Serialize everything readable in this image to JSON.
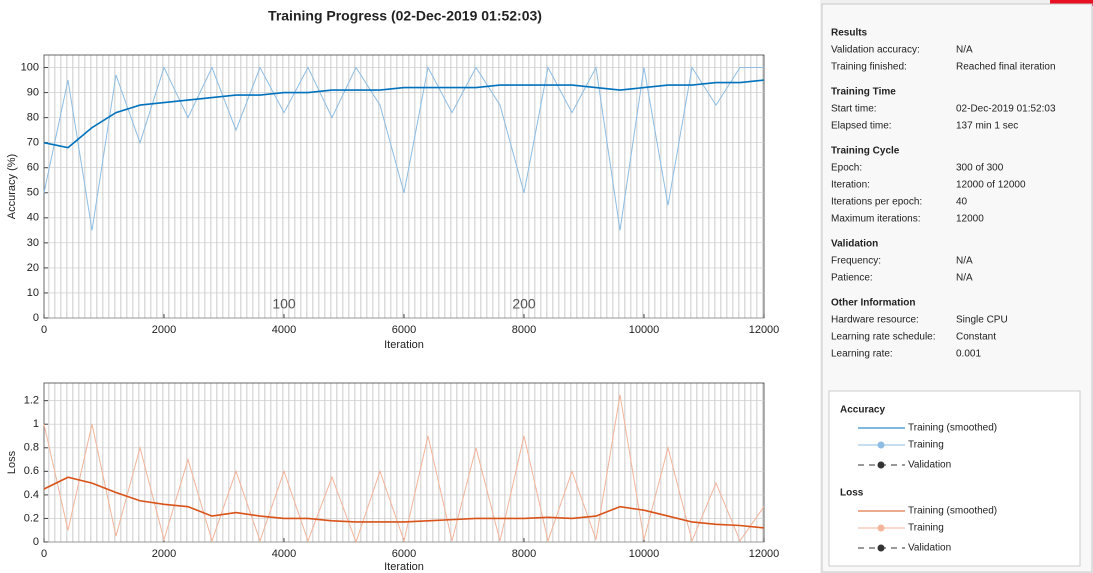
{
  "chart_data": [
    {
      "type": "line",
      "title": "Training Progress (02-Dec-2019 01:52:03)",
      "xlabel": "Iteration",
      "ylabel": "Accuracy (%)",
      "x": [
        0,
        400,
        800,
        1200,
        1600,
        2000,
        2400,
        2800,
        3200,
        3600,
        4000,
        4400,
        4800,
        5200,
        5600,
        6000,
        6400,
        6800,
        7200,
        7600,
        8000,
        8400,
        8800,
        9200,
        9600,
        10000,
        10400,
        10800,
        11200,
        11600,
        12000
      ],
      "xlim": [
        0,
        12000
      ],
      "xticks": [
        0,
        2000,
        4000,
        6000,
        8000,
        10000,
        12000
      ],
      "ylim": [
        0,
        105
      ],
      "yticks": [
        0,
        10,
        20,
        30,
        40,
        50,
        60,
        70,
        80,
        90,
        100
      ],
      "grid": true,
      "epoch_labels": [
        {
          "value": 4000,
          "label": "100"
        },
        {
          "value": 8000,
          "label": "200"
        }
      ],
      "series": [
        {
          "name": "Training",
          "color": "#8dbde3",
          "values": [
            50,
            95,
            35,
            97,
            70,
            100,
            80,
            100,
            75,
            100,
            82,
            100,
            80,
            100,
            85,
            50,
            100,
            82,
            100,
            85,
            50,
            100,
            82,
            100,
            35,
            100,
            45,
            100,
            85,
            100,
            100
          ]
        },
        {
          "name": "Training (smoothed)",
          "color": "#0072bd",
          "values": [
            70,
            68,
            76,
            82,
            85,
            86,
            87,
            88,
            89,
            89,
            90,
            90,
            91,
            91,
            91,
            92,
            92,
            92,
            92,
            93,
            93,
            93,
            93,
            92,
            91,
            92,
            93,
            93,
            94,
            94,
            95
          ]
        }
      ]
    },
    {
      "type": "line",
      "xlabel": "Iteration",
      "ylabel": "Loss",
      "x": [
        0,
        400,
        800,
        1200,
        1600,
        2000,
        2400,
        2800,
        3200,
        3600,
        4000,
        4400,
        4800,
        5200,
        5600,
        6000,
        6400,
        6800,
        7200,
        7600,
        8000,
        8400,
        8800,
        9200,
        9600,
        10000,
        10400,
        10800,
        11200,
        11600,
        12000
      ],
      "xlim": [
        0,
        12000
      ],
      "xticks": [
        0,
        2000,
        4000,
        6000,
        8000,
        10000,
        12000
      ],
      "ylim": [
        0,
        1.35
      ],
      "yticks": [
        0,
        0.2,
        0.4,
        0.6,
        0.8,
        1,
        1.2
      ],
      "grid": true,
      "series": [
        {
          "name": "Training",
          "color": "#f2b49a",
          "values": [
            1.0,
            0.1,
            1.0,
            0.05,
            0.8,
            0.02,
            0.7,
            0.01,
            0.6,
            0.01,
            0.6,
            0.01,
            0.55,
            0,
            0.6,
            0.01,
            0.9,
            0.01,
            0.8,
            0.01,
            0.9,
            0.01,
            0.6,
            0.02,
            1.25,
            0.02,
            0.8,
            0.01,
            0.5,
            0.01,
            0.3
          ]
        },
        {
          "name": "Training (smoothed)",
          "color": "#d95319",
          "values": [
            0.45,
            0.55,
            0.5,
            0.42,
            0.35,
            0.32,
            0.3,
            0.22,
            0.25,
            0.22,
            0.2,
            0.2,
            0.18,
            0.17,
            0.17,
            0.17,
            0.18,
            0.19,
            0.2,
            0.2,
            0.2,
            0.21,
            0.2,
            0.22,
            0.3,
            0.27,
            0.22,
            0.17,
            0.15,
            0.14,
            0.12
          ]
        }
      ]
    }
  ],
  "sidebar": {
    "sections": [
      {
        "title": "Results",
        "rows": [
          [
            "Validation accuracy:",
            "N/A"
          ],
          [
            "Training finished:",
            "Reached final iteration"
          ]
        ]
      },
      {
        "title": "Training Time",
        "rows": [
          [
            "Start time:",
            "02-Dec-2019 01:52:03"
          ],
          [
            "Elapsed time:",
            "137 min 1 sec"
          ]
        ]
      },
      {
        "title": "Training Cycle",
        "rows": [
          [
            "Epoch:",
            "300 of 300"
          ],
          [
            "Iteration:",
            "12000 of 12000"
          ],
          [
            "Iterations per epoch:",
            "40"
          ],
          [
            "Maximum iterations:",
            "12000"
          ]
        ]
      },
      {
        "title": "Validation",
        "rows": [
          [
            "Frequency:",
            "N/A"
          ],
          [
            "Patience:",
            "N/A"
          ]
        ]
      },
      {
        "title": "Other Information",
        "rows": [
          [
            "Hardware resource:",
            "Single CPU"
          ],
          [
            "Learning rate schedule:",
            "Constant"
          ],
          [
            "Learning rate:",
            "0.001"
          ]
        ]
      }
    ]
  },
  "legend": [
    {
      "title": "Accuracy",
      "validation": "Validation"
    },
    {
      "title": "Loss",
      "validation": "Validation"
    }
  ]
}
